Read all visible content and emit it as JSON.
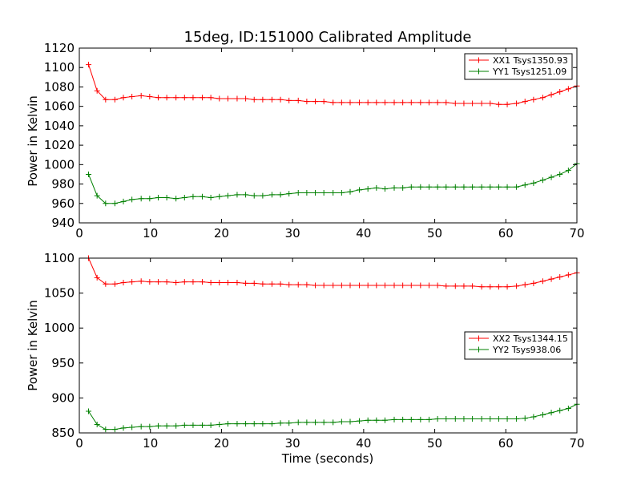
{
  "chart_data": [
    {
      "type": "line",
      "title": "15deg, ID:151000 Calibrated Amplitude",
      "xlabel": "",
      "ylabel": "Power in Kelvin",
      "xlim": [
        0,
        70
      ],
      "ylim": [
        940,
        1120
      ],
      "xticks": [
        "0",
        "10",
        "20",
        "30",
        "40",
        "50",
        "60",
        "70"
      ],
      "yticks": [
        "940",
        "960",
        "980",
        "1000",
        "1020",
        "1040",
        "1060",
        "1080",
        "1100",
        "1120"
      ],
      "legend_position": "top-right",
      "x": [
        1.3,
        2.5,
        3.7,
        5.0,
        6.2,
        7.4,
        8.7,
        9.9,
        11.1,
        12.3,
        13.6,
        14.8,
        16.0,
        17.3,
        18.5,
        19.7,
        20.9,
        22.2,
        23.4,
        24.6,
        25.8,
        27.1,
        28.3,
        29.5,
        30.8,
        32.0,
        33.2,
        34.4,
        35.7,
        36.9,
        38.1,
        39.4,
        40.6,
        41.8,
        43.0,
        44.3,
        45.5,
        46.7,
        48.0,
        49.2,
        50.4,
        51.6,
        52.9,
        54.1,
        55.3,
        56.6,
        57.8,
        59.0,
        60.2,
        61.5,
        62.7,
        63.9,
        65.2,
        66.4,
        67.6,
        68.8,
        70.0
      ],
      "series": [
        {
          "name": "XX1 Tsys1350.93",
          "color": "#ff0000",
          "values": [
            1103,
            1076,
            1067,
            1067,
            1069,
            1070,
            1071,
            1070,
            1069,
            1069,
            1069,
            1069,
            1069,
            1069,
            1069,
            1068,
            1068,
            1068,
            1068,
            1067,
            1067,
            1067,
            1067,
            1066,
            1066,
            1065,
            1065,
            1065,
            1064,
            1064,
            1064,
            1064,
            1064,
            1064,
            1064,
            1064,
            1064,
            1064,
            1064,
            1064,
            1064,
            1064,
            1063,
            1063,
            1063,
            1063,
            1063,
            1062,
            1062,
            1063,
            1065,
            1067,
            1069,
            1072,
            1075,
            1078,
            1081
          ]
        },
        {
          "name": "YY1 Tsys1251.09",
          "color": "#008000",
          "values": [
            990,
            968,
            960,
            960,
            962,
            964,
            965,
            965,
            966,
            966,
            965,
            966,
            967,
            967,
            966,
            967,
            968,
            969,
            969,
            968,
            968,
            969,
            969,
            970,
            971,
            971,
            971,
            971,
            971,
            971,
            972,
            974,
            975,
            976,
            975,
            976,
            976,
            977,
            977,
            977,
            977,
            977,
            977,
            977,
            977,
            977,
            977,
            977,
            977,
            977,
            979,
            981,
            984,
            987,
            990,
            994,
            1001
          ]
        }
      ]
    },
    {
      "type": "line",
      "title": "",
      "xlabel": "Time (seconds)",
      "ylabel": "Power in Kelvin",
      "xlim": [
        0,
        70
      ],
      "ylim": [
        850,
        1100
      ],
      "xticks": [
        "0",
        "10",
        "20",
        "30",
        "40",
        "50",
        "60",
        "70"
      ],
      "yticks": [
        "850",
        "900",
        "950",
        "1000",
        "1050",
        "1100"
      ],
      "legend_position": "center-right",
      "x": [
        1.3,
        2.5,
        3.7,
        5.0,
        6.2,
        7.4,
        8.7,
        9.9,
        11.1,
        12.3,
        13.6,
        14.8,
        16.0,
        17.3,
        18.5,
        19.7,
        20.9,
        22.2,
        23.4,
        24.6,
        25.8,
        27.1,
        28.3,
        29.5,
        30.8,
        32.0,
        33.2,
        34.4,
        35.7,
        36.9,
        38.1,
        39.4,
        40.6,
        41.8,
        43.0,
        44.3,
        45.5,
        46.7,
        48.0,
        49.2,
        50.4,
        51.6,
        52.9,
        54.1,
        55.3,
        56.6,
        57.8,
        59.0,
        60.2,
        61.5,
        62.7,
        63.9,
        65.2,
        66.4,
        67.6,
        68.8,
        70.0
      ],
      "series": [
        {
          "name": "XX2 Tsys1344.15",
          "color": "#ff0000",
          "values": [
            1100,
            1072,
            1063,
            1063,
            1065,
            1066,
            1067,
            1066,
            1066,
            1066,
            1065,
            1066,
            1066,
            1066,
            1065,
            1065,
            1065,
            1065,
            1064,
            1064,
            1063,
            1063,
            1063,
            1062,
            1062,
            1062,
            1061,
            1061,
            1061,
            1061,
            1061,
            1061,
            1061,
            1061,
            1061,
            1061,
            1061,
            1061,
            1061,
            1061,
            1061,
            1060,
            1060,
            1060,
            1060,
            1059,
            1059,
            1059,
            1059,
            1060,
            1062,
            1064,
            1067,
            1070,
            1073,
            1076,
            1079
          ]
        },
        {
          "name": "YY2 Tsys938.06",
          "color": "#008000",
          "values": [
            881,
            862,
            855,
            855,
            857,
            858,
            859,
            859,
            860,
            860,
            860,
            861,
            861,
            861,
            861,
            862,
            863,
            863,
            863,
            863,
            863,
            863,
            864,
            864,
            865,
            865,
            865,
            865,
            865,
            866,
            866,
            867,
            868,
            868,
            868,
            869,
            869,
            869,
            869,
            869,
            870,
            870,
            870,
            870,
            870,
            870,
            870,
            870,
            870,
            870,
            871,
            873,
            876,
            879,
            882,
            885,
            891
          ]
        }
      ]
    }
  ]
}
